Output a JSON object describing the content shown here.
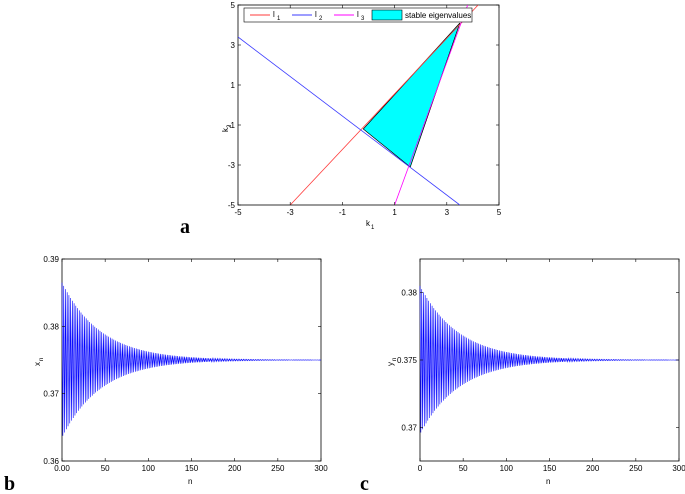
{
  "chart_data": [
    {
      "panel": "a",
      "type": "line",
      "xlabel": "k",
      "xlabel_sub": "1",
      "ylabel": "k",
      "ylabel_sub": "2",
      "xlim": [
        -5,
        5
      ],
      "ylim": [
        -5,
        5
      ],
      "xticks": [
        -5,
        -3,
        -1,
        1,
        3,
        5
      ],
      "yticks": [
        -5,
        -3,
        -1,
        1,
        3,
        5
      ],
      "legend_position": "top",
      "series": [
        {
          "name": "l",
          "sub": "1",
          "color": "#ff3b3b",
          "x": [
            -3,
            4.2
          ],
          "y": [
            -5,
            5.0
          ]
        },
        {
          "name": "l",
          "sub": "2",
          "color": "#3b3bff",
          "x": [
            -5,
            3.5
          ],
          "y": [
            3.4,
            -5
          ]
        },
        {
          "name": "l",
          "sub": "3",
          "color": "#ff00ff",
          "x": [
            1.0,
            3.8
          ],
          "y": [
            -5,
            5.0
          ]
        }
      ],
      "region": {
        "name": "stable eigenvalues",
        "color": "#00ffff",
        "vertices": [
          [
            -0.2,
            -1.2
          ],
          [
            1.6,
            -3.1
          ],
          [
            3.5,
            4.1
          ]
        ]
      }
    },
    {
      "panel": "b",
      "type": "line",
      "xlabel": "n",
      "ylabel": "x",
      "ylabel_sub": "n",
      "xlim": [
        0,
        300
      ],
      "ylim": [
        0.36,
        0.39
      ],
      "xticks": [
        0,
        50,
        100,
        150,
        200,
        250,
        300
      ],
      "yticks": [
        0.36,
        0.37,
        0.38,
        0.39
      ],
      "color": "#0000ff",
      "equilibrium": 0.375,
      "amplitude0": 0.0115,
      "decay_n": 45,
      "n_points": 300
    },
    {
      "panel": "c",
      "type": "line",
      "xlabel": "n",
      "ylabel": "y",
      "ylabel_sub": "n",
      "xlim": [
        0,
        300
      ],
      "ylim": [
        0.3675,
        0.3825
      ],
      "xticks": [
        0,
        50,
        100,
        150,
        200,
        250,
        300
      ],
      "yticks": [
        0.37,
        0.375,
        0.38
      ],
      "color": "#0000ff",
      "equilibrium": 0.375,
      "amplitude0": 0.0055,
      "decay_n": 45,
      "n_points": 300
    }
  ],
  "labels": {
    "a": "a",
    "b": "b",
    "c": "c"
  }
}
